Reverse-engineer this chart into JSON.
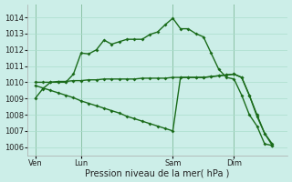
{
  "bg_color": "#cceee8",
  "grid_color": "#aaddcc",
  "line_color": "#1a6b1a",
  "markersize": 2.0,
  "linewidth": 1.0,
  "ylim": [
    1005.5,
    1014.8
  ],
  "yticks": [
    1006,
    1007,
    1008,
    1009,
    1010,
    1011,
    1012,
    1013,
    1014
  ],
  "xlabel": "Pression niveau de la mer( hPa )",
  "xlabel_fontsize": 7,
  "tick_fontsize": 6,
  "xtick_labels": [
    "Ven",
    "Lun",
    "Sam",
    "Dim"
  ],
  "xtick_positions": [
    0,
    6,
    18,
    26
  ],
  "vline_positions": [
    0,
    6,
    18,
    26
  ],
  "xmin": -1,
  "xmax": 33,
  "line1_x": [
    0,
    1,
    2,
    3,
    4,
    5,
    6,
    7,
    8,
    9,
    10,
    11,
    12,
    13,
    14,
    15,
    16,
    17,
    18,
    19,
    20,
    21,
    22,
    23,
    24,
    25,
    26,
    27,
    28,
    29,
    30,
    31
  ],
  "line1_y": [
    1009.0,
    1009.6,
    1010.0,
    1010.0,
    1010.0,
    1010.5,
    1011.8,
    1011.75,
    1012.0,
    1012.6,
    1012.35,
    1012.5,
    1012.65,
    1012.65,
    1012.65,
    1012.95,
    1013.1,
    1013.55,
    1013.95,
    1013.3,
    1013.3,
    1013.0,
    1012.8,
    1011.8,
    1010.8,
    1010.3,
    1010.2,
    1009.2,
    1008.0,
    1007.3,
    1006.2,
    1006.1
  ],
  "line2_x": [
    0,
    1,
    2,
    3,
    4,
    5,
    6,
    7,
    8,
    9,
    10,
    11,
    12,
    13,
    14,
    15,
    16,
    17,
    18,
    19,
    20,
    21,
    22,
    23,
    24,
    25,
    26,
    27,
    28,
    29,
    30,
    31
  ],
  "line2_y": [
    1010.0,
    1010.0,
    1010.0,
    1010.05,
    1010.05,
    1010.1,
    1010.1,
    1010.15,
    1010.15,
    1010.2,
    1010.2,
    1010.2,
    1010.2,
    1010.2,
    1010.25,
    1010.25,
    1010.25,
    1010.25,
    1010.3,
    1010.3,
    1010.3,
    1010.3,
    1010.3,
    1010.35,
    1010.4,
    1010.45,
    1010.5,
    1010.3,
    1009.2,
    1008.0,
    1006.85,
    1006.1
  ],
  "line3_x": [
    0,
    1,
    2,
    3,
    4,
    5,
    6,
    7,
    8,
    9,
    10,
    11,
    12,
    13,
    14,
    15,
    16,
    17,
    18,
    19,
    20,
    21,
    22,
    23,
    24,
    25,
    26,
    27,
    28,
    29,
    30,
    31
  ],
  "line3_y": [
    1009.8,
    1009.65,
    1009.5,
    1009.35,
    1009.2,
    1009.05,
    1008.85,
    1008.7,
    1008.55,
    1008.4,
    1008.25,
    1008.1,
    1007.9,
    1007.75,
    1007.6,
    1007.45,
    1007.3,
    1007.15,
    1007.0,
    1010.3,
    1010.3,
    1010.3,
    1010.3,
    1010.35,
    1010.4,
    1010.45,
    1010.5,
    1010.3,
    1009.2,
    1007.9,
    1006.85,
    1006.2
  ]
}
